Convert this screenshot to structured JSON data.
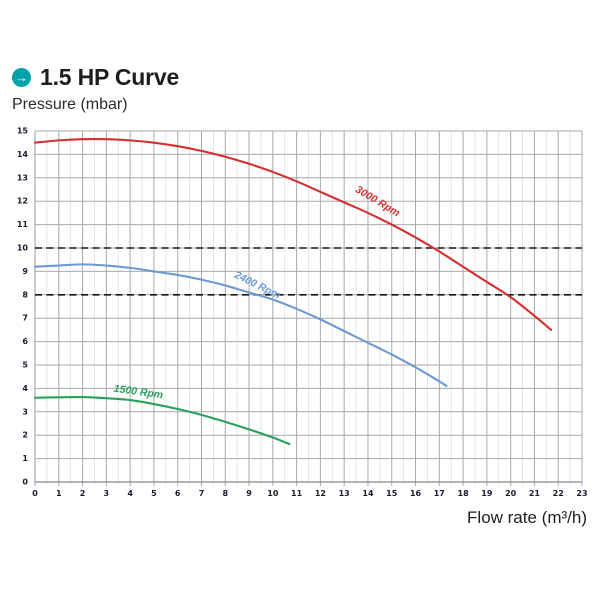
{
  "header": {
    "title": "1.5 HP Curve",
    "bullet_icon": "arrow-right-circle-icon",
    "accent_color": "#00a2a9"
  },
  "chart_data": {
    "type": "line",
    "title": "1.5 HP Curve",
    "ylabel": "Pressure (mbar)",
    "xlabel": "Flow rate (m³/h)",
    "xlim": [
      0,
      23
    ],
    "ylim": [
      0,
      15
    ],
    "x_tick_step": 1,
    "y_tick_step": 1,
    "x_minor_step": 0.5,
    "grid": true,
    "legend_position": "inline-curve-labels",
    "grid_major_color": "#a8a8b0",
    "grid_minor_color": "#dcdce1",
    "axis_color": "#86868e",
    "tick_label_color": "#1a1a2e",
    "reference_lines": [
      {
        "y": 10,
        "style": "dashed",
        "color": "#141414"
      },
      {
        "y": 8,
        "style": "dashed",
        "color": "#141414"
      }
    ],
    "series": [
      {
        "name": "3000 Rpm",
        "color": "#d32f2f",
        "points": [
          [
            0,
            14.5
          ],
          [
            1,
            14.6
          ],
          [
            2,
            14.65
          ],
          [
            3,
            14.65
          ],
          [
            4,
            14.6
          ],
          [
            5,
            14.5
          ],
          [
            6,
            14.35
          ],
          [
            7,
            14.15
          ],
          [
            8,
            13.9
          ],
          [
            9,
            13.6
          ],
          [
            10,
            13.25
          ],
          [
            11,
            12.85
          ],
          [
            12,
            12.4
          ],
          [
            13,
            11.95
          ],
          [
            14,
            11.5
          ],
          [
            15,
            11.0
          ],
          [
            16,
            10.45
          ],
          [
            17,
            9.85
          ],
          [
            18,
            9.2
          ],
          [
            19,
            8.55
          ],
          [
            20,
            7.9
          ],
          [
            21,
            7.1
          ],
          [
            21.7,
            6.5
          ]
        ]
      },
      {
        "name": "2400 Rpm",
        "color": "#6b9bd2",
        "points": [
          [
            0,
            9.2
          ],
          [
            1,
            9.25
          ],
          [
            2,
            9.3
          ],
          [
            3,
            9.25
          ],
          [
            4,
            9.15
          ],
          [
            5,
            9.0
          ],
          [
            6,
            8.85
          ],
          [
            7,
            8.65
          ],
          [
            8,
            8.4
          ],
          [
            9,
            8.1
          ],
          [
            10,
            7.8
          ],
          [
            11,
            7.4
          ],
          [
            12,
            6.95
          ],
          [
            13,
            6.45
          ],
          [
            14,
            5.95
          ],
          [
            15,
            5.45
          ],
          [
            16,
            4.9
          ],
          [
            17,
            4.3
          ],
          [
            17.3,
            4.1
          ]
        ]
      },
      {
        "name": "1500 Rpm",
        "color": "#2aa05a",
        "points": [
          [
            0,
            3.6
          ],
          [
            1,
            3.62
          ],
          [
            2,
            3.63
          ],
          [
            3,
            3.58
          ],
          [
            4,
            3.5
          ],
          [
            5,
            3.33
          ],
          [
            6,
            3.12
          ],
          [
            7,
            2.87
          ],
          [
            8,
            2.57
          ],
          [
            9,
            2.25
          ],
          [
            10,
            1.9
          ],
          [
            10.7,
            1.62
          ]
        ]
      }
    ]
  }
}
